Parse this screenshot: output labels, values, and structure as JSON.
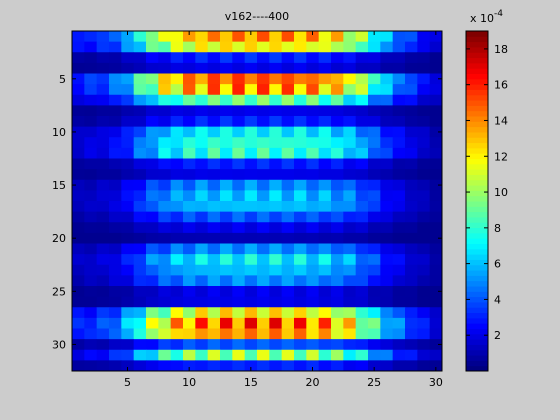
{
  "chart_data": {
    "type": "heatmap",
    "title": "v162----400",
    "xlabel": "",
    "ylabel": "",
    "x_range": [
      0.5,
      30.5
    ],
    "y_range": [
      0.5,
      32.5
    ],
    "y_reversed": true,
    "x_ticks": [
      "5",
      "10",
      "15",
      "20",
      "25",
      "30"
    ],
    "y_ticks": [
      "5",
      "10",
      "15",
      "20",
      "25",
      "30"
    ],
    "colormap": "jet",
    "colorbar": {
      "range": [
        0,
        0.0019
      ],
      "exponent_prefix": "x 10",
      "exponent_power": "-4",
      "ticks": [
        "2",
        "4",
        "6",
        "8",
        "10",
        "12",
        "14",
        "16",
        "18"
      ]
    },
    "row_profile_units_1e-4": [
      14,
      12,
      3,
      2,
      15,
      14,
      9,
      2,
      3,
      7,
      8,
      8,
      3,
      2,
      5,
      6,
      6,
      4,
      2,
      1,
      5,
      7,
      6,
      5,
      2,
      2,
      12,
      15,
      14,
      4,
      10,
      3
    ],
    "column_profile_relative": [
      0.2,
      0.22,
      0.25,
      0.3,
      0.4,
      0.55,
      0.7,
      0.8,
      0.88,
      0.93,
      0.96,
      0.98,
      0.99,
      1.0,
      1.0,
      1.0,
      1.0,
      0.99,
      0.98,
      0.96,
      0.93,
      0.88,
      0.8,
      0.7,
      0.55,
      0.42,
      0.32,
      0.25,
      0.18,
      0.12
    ]
  }
}
